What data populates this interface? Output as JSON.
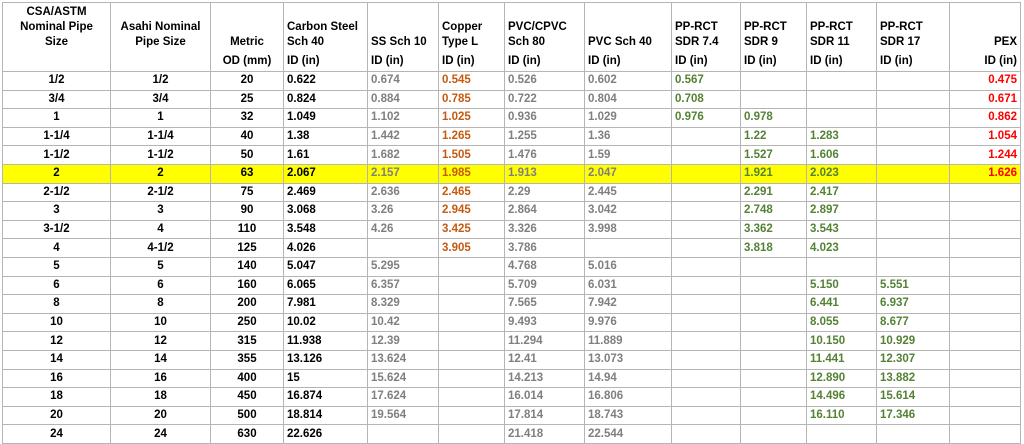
{
  "columns": [
    {
      "h1": "CSA/ASTM\nNominal Pipe\nSize",
      "h2": "",
      "align": "ctr",
      "color": "c-black"
    },
    {
      "h1": "Asahi Nominal\nPipe Size",
      "h2": "",
      "align": "ctr",
      "color": "c-black"
    },
    {
      "h1": "Metric",
      "h2": "OD (mm)",
      "align": "ctr",
      "color": "c-black"
    },
    {
      "h1": "Carbon Steel\nSch 40",
      "h2": "ID (in)",
      "align": "lft",
      "color": "c-black"
    },
    {
      "h1": "SS Sch 10",
      "h2": "ID (in)",
      "align": "lft",
      "color": "c-gray"
    },
    {
      "h1": "Copper\nType L",
      "h2": "ID (in)",
      "align": "lft",
      "color": "c-orange"
    },
    {
      "h1": "PVC/CPVC\nSch 80",
      "h2": "ID (in)",
      "align": "lft",
      "color": "c-gray"
    },
    {
      "h1": "PVC Sch 40",
      "h2": "ID (in)",
      "align": "lft",
      "color": "c-gray"
    },
    {
      "h1": "PP-RCT\nSDR 7.4",
      "h2": "ID (in)",
      "align": "lft",
      "color": "c-green"
    },
    {
      "h1": "PP-RCT\nSDR 9",
      "h2": "ID (in)",
      "align": "lft",
      "color": "c-green"
    },
    {
      "h1": "PP-RCT\nSDR 11",
      "h2": "ID (in)",
      "align": "lft",
      "color": "c-green"
    },
    {
      "h1": "PP-RCT\nSDR 17",
      "h2": "ID (in)",
      "align": "lft",
      "color": "c-green"
    },
    {
      "h1": "PEX",
      "h2": "ID (in)",
      "align": "rgt",
      "color": "c-red"
    }
  ],
  "highlight_color": "#ffff00",
  "highlight_row": "2",
  "rows": [
    [
      "1/2",
      "1/2",
      "20",
      "0.622",
      "0.674",
      "0.545",
      "0.526",
      "0.602",
      "0.567",
      "",
      "",
      "",
      "0.475"
    ],
    [
      "3/4",
      "3/4",
      "25",
      "0.824",
      "0.884",
      "0.785",
      "0.722",
      "0.804",
      "0.708",
      "",
      "",
      "",
      "0.671"
    ],
    [
      "1",
      "1",
      "32",
      "1.049",
      "1.102",
      "1.025",
      "0.936",
      "1.029",
      "0.976",
      "0.978",
      "",
      "",
      "0.862"
    ],
    [
      "1-1/4",
      "1-1/4",
      "40",
      "1.38",
      "1.442",
      "1.265",
      "1.255",
      "1.36",
      "",
      "1.22",
      "1.283",
      "",
      "1.054"
    ],
    [
      "1-1/2",
      "1-1/2",
      "50",
      "1.61",
      "1.682",
      "1.505",
      "1.476",
      "1.59",
      "",
      "1.527",
      "1.606",
      "",
      "1.244"
    ],
    [
      "2",
      "2",
      "63",
      "2.067",
      "2.157",
      "1.985",
      "1.913",
      "2.047",
      "",
      "1.921",
      "2.023",
      "",
      "1.626"
    ],
    [
      "2-1/2",
      "2-1/2",
      "75",
      "2.469",
      "2.636",
      "2.465",
      "2.29",
      "2.445",
      "",
      "2.291",
      "2.417",
      "",
      ""
    ],
    [
      "3",
      "3",
      "90",
      "3.068",
      "3.26",
      "2.945",
      "2.864",
      "3.042",
      "",
      "2.748",
      "2.897",
      "",
      ""
    ],
    [
      "3-1/2",
      "4",
      "110",
      "3.548",
      "4.26",
      "3.425",
      "3.326",
      "3.998",
      "",
      "3.362",
      "3.543",
      "",
      ""
    ],
    [
      "4",
      "4-1/2",
      "125",
      "4.026",
      "",
      "3.905",
      "3.786",
      "",
      "",
      "3.818",
      "4.023",
      "",
      ""
    ],
    [
      "5",
      "5",
      "140",
      "5.047",
      "5.295",
      "",
      "4.768",
      "5.016",
      "",
      "",
      "",
      "",
      ""
    ],
    [
      "6",
      "6",
      "160",
      "6.065",
      "6.357",
      "",
      "5.709",
      "6.031",
      "",
      "",
      "5.150",
      "5.551",
      ""
    ],
    [
      "8",
      "8",
      "200",
      "7.981",
      "8.329",
      "",
      "7.565",
      "7.942",
      "",
      "",
      "6.441",
      "6.937",
      ""
    ],
    [
      "10",
      "10",
      "250",
      "10.02",
      "10.42",
      "",
      "9.493",
      "9.976",
      "",
      "",
      "8.055",
      "8.677",
      ""
    ],
    [
      "12",
      "12",
      "315",
      "11.938",
      "12.39",
      "",
      "11.294",
      "11.889",
      "",
      "",
      "10.150",
      "10.929",
      ""
    ],
    [
      "14",
      "14",
      "355",
      "13.126",
      "13.624",
      "",
      "12.41",
      "13.073",
      "",
      "",
      "11.441",
      "12.307",
      ""
    ],
    [
      "16",
      "16",
      "400",
      "15",
      "15.624",
      "",
      "14.213",
      "14.94",
      "",
      "",
      "12.890",
      "13.882",
      ""
    ],
    [
      "18",
      "18",
      "450",
      "16.874",
      "17.624",
      "",
      "16.014",
      "16.806",
      "",
      "",
      "14.496",
      "15.614",
      ""
    ],
    [
      "20",
      "20",
      "500",
      "18.814",
      "19.564",
      "",
      "17.814",
      "18.743",
      "",
      "",
      "16.110",
      "17.346",
      ""
    ],
    [
      "24",
      "24",
      "630",
      "22.626",
      "",
      "",
      "21.418",
      "22.544",
      "",
      "",
      "",
      "",
      ""
    ]
  ]
}
